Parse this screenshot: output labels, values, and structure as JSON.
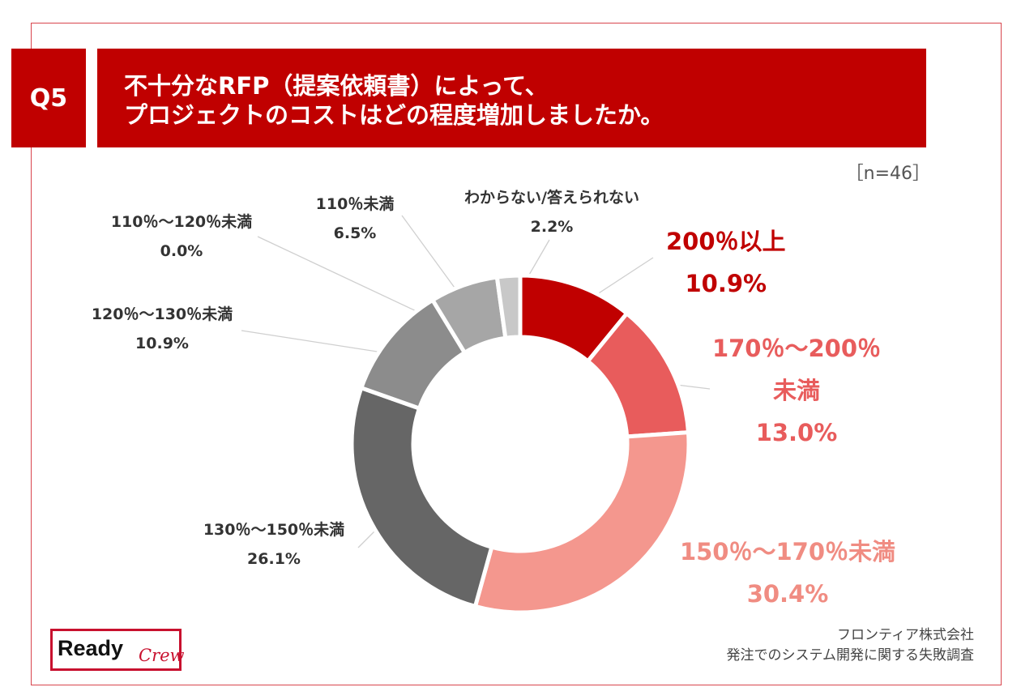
{
  "header": {
    "badge": "Q5",
    "title_line1": "不十分なRFP（提案依頼書）によって、",
    "title_line2": "プロジェクトのコストはどの程度増加しましたか。"
  },
  "sample_size": "［n=46］",
  "colors": {
    "frame": "#d8454d",
    "header_bg": "#c00000"
  },
  "chart_data": {
    "type": "pie",
    "variant": "donut",
    "direction": "clockwise from top",
    "slices": [
      {
        "label": "200％以上",
        "value": 10.9,
        "display": "10.9%",
        "color": "#c00000"
      },
      {
        "label": "170％〜200％未満",
        "value": 13.0,
        "display": "13.0%",
        "color": "#e85c5c"
      },
      {
        "label": "150％〜170％未満",
        "value": 30.4,
        "display": "30.4%",
        "color": "#f4978e"
      },
      {
        "label": "130％〜150％未満",
        "value": 26.1,
        "display": "26.1%",
        "color": "#666666"
      },
      {
        "label": "120％〜130％未満",
        "value": 10.9,
        "display": "10.9%",
        "color": "#8c8c8c"
      },
      {
        "label": "110％〜120％未満",
        "value": 0.0,
        "display": "0.0%",
        "color": "#b4b4b4"
      },
      {
        "label": "110％未満",
        "value": 6.5,
        "display": "6.5%",
        "color": "#a6a6a6"
      },
      {
        "label": "わからない/答えられない",
        "value": 2.2,
        "display": "2.2%",
        "color": "#c8c8c8"
      }
    ]
  },
  "labels": {
    "s200": {
      "l1": "200％以上",
      "l2": "10.9%"
    },
    "s170": {
      "l1": "170％〜200％",
      "l2": "未満",
      "l3": "13.0%"
    },
    "s150": {
      "l1": "150％〜170％未満",
      "l2": "30.4%"
    },
    "s130": {
      "l1": "130％〜150％未満",
      "l2": "26.1%"
    },
    "s120": {
      "l1": "120％〜130％未満",
      "l2": "10.9%"
    },
    "s110_120": {
      "l1": "110％〜120％未満",
      "l2": "0.0%"
    },
    "s110": {
      "l1": "110％未満",
      "l2": "6.5%"
    },
    "unknown": {
      "l1": "わからない/答えられない",
      "l2": "2.2%"
    }
  },
  "logo": {
    "ready": "Ready",
    "crew": "Crew"
  },
  "source": {
    "company": "フロンティア株式会社",
    "survey": "発注でのシステム開発に関する失敗調査"
  }
}
